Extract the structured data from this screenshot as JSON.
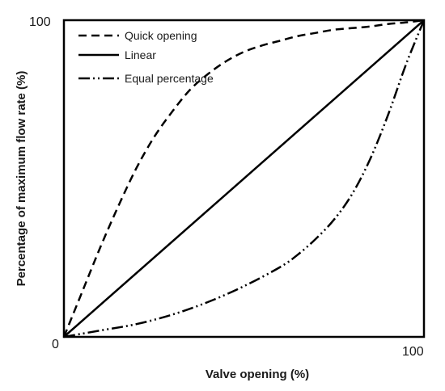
{
  "chart_data": {
    "type": "line",
    "title": "",
    "xlabel": "Valve opening (%)",
    "ylabel": "Percentage of maximum flow rate (%)",
    "xlim": [
      0,
      100
    ],
    "ylim": [
      0,
      100
    ],
    "x_tick_labels": {
      "min": "0",
      "max": "100"
    },
    "y_tick_labels": {
      "min": "0",
      "max": "100"
    },
    "grid": false,
    "legend_position": "top-left",
    "series": [
      {
        "name": "Quick opening",
        "line_style": "dashed",
        "color": "#000000",
        "x": [
          0,
          5,
          10,
          15,
          20,
          25,
          30,
          35,
          40,
          45,
          50,
          55,
          60,
          65,
          70,
          75,
          80,
          85,
          90,
          95,
          100
        ],
        "y": [
          0,
          14,
          28,
          41,
          53,
          63,
          71,
          78,
          83,
          87,
          90,
          92,
          93.5,
          95,
          96,
          97,
          97.5,
          98,
          98.8,
          99.3,
          100
        ]
      },
      {
        "name": "Linear",
        "line_style": "solid",
        "color": "#000000",
        "x": [
          0,
          100
        ],
        "y": [
          0,
          100
        ]
      },
      {
        "name": "Equal percentage",
        "line_style": "dash-dot-dot",
        "color": "#000000",
        "x": [
          0,
          10,
          20,
          30,
          40,
          50,
          60,
          65,
          70,
          75,
          80,
          85,
          90,
          95,
          100
        ],
        "y": [
          0,
          2,
          4,
          7,
          11,
          16,
          22,
          26,
          31,
          37,
          45,
          56,
          70,
          86,
          100
        ]
      }
    ]
  }
}
